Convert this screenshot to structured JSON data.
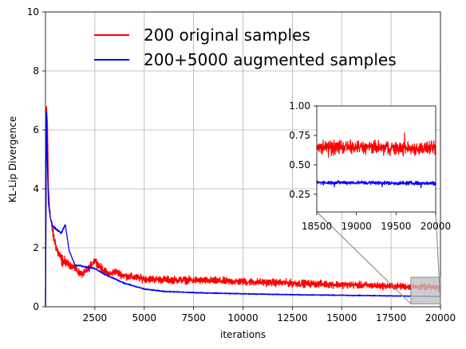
{
  "chart_data": [
    {
      "type": "line",
      "xlabel": "iterations",
      "ylabel": "KL-Lip Divergence",
      "xlim": [
        0,
        20000
      ],
      "ylim": [
        0,
        10
      ],
      "xticks": [
        2500,
        5000,
        7500,
        10000,
        12500,
        15000,
        17500,
        20000
      ],
      "xtick_labels": [
        "2500",
        "5000",
        "7500",
        "10000",
        "12500",
        "15000",
        "17500",
        "20000"
      ],
      "yticks": [
        0,
        2,
        4,
        6,
        8,
        10
      ],
      "ytick_labels": [
        "0",
        "2",
        "4",
        "6",
        "8",
        "10"
      ],
      "grid": true,
      "legend": "top-center",
      "series": [
        {
          "name": "200 original samples",
          "color": "#ff0000",
          "noise": 0.18,
          "x": [
            0,
            50,
            100,
            150,
            250,
            400,
            600,
            800,
            1000,
            1200,
            1500,
            1800,
            2000,
            2200,
            2400,
            2500,
            2700,
            3000,
            3300,
            3500,
            4000,
            5000,
            6000,
            7500,
            10000,
            12500,
            15000,
            17500,
            20000
          ],
          "y": [
            0.0,
            6.8,
            6.2,
            4.0,
            3.0,
            2.4,
            1.9,
            1.6,
            1.5,
            1.45,
            1.3,
            1.1,
            1.15,
            1.3,
            1.5,
            1.6,
            1.4,
            1.2,
            1.1,
            1.2,
            1.05,
            0.95,
            0.92,
            0.9,
            0.85,
            0.8,
            0.75,
            0.7,
            0.65
          ]
        },
        {
          "name": "200+5000 augmented samples",
          "color": "#0000ff",
          "noise": 0.035,
          "x": [
            0,
            50,
            100,
            150,
            250,
            400,
            600,
            800,
            1000,
            1200,
            1500,
            1800,
            2000,
            2500,
            3000,
            3500,
            4000,
            5000,
            6000,
            7500,
            10000,
            12500,
            15000,
            17500,
            20000
          ],
          "y": [
            0.0,
            6.6,
            4.8,
            3.5,
            3.0,
            2.7,
            2.6,
            2.5,
            2.8,
            1.9,
            1.4,
            1.4,
            1.35,
            1.3,
            1.1,
            0.95,
            0.8,
            0.6,
            0.52,
            0.48,
            0.44,
            0.41,
            0.39,
            0.37,
            0.35
          ]
        }
      ]
    },
    {
      "type": "line",
      "xlim": [
        18500,
        20000
      ],
      "ylim": [
        0.1,
        1.0
      ],
      "xticks": [
        18500,
        19000,
        19500,
        20000
      ],
      "xtick_labels": [
        "18500",
        "19000",
        "19500",
        "20000"
      ],
      "yticks": [
        0.25,
        0.5,
        0.75,
        1.0
      ],
      "ytick_labels": [
        "0.25",
        "0.50",
        "0.75",
        "1.00"
      ],
      "grid": false,
      "series": [
        {
          "color": "#ff0000",
          "noise": 0.07,
          "x": [
            18500,
            19000,
            19500,
            20000
          ],
          "y": [
            0.65,
            0.65,
            0.64,
            0.64
          ]
        },
        {
          "color": "#0000ff",
          "noise": 0.02,
          "x": [
            18500,
            19000,
            19500,
            20000
          ],
          "y": [
            0.35,
            0.35,
            0.345,
            0.345
          ]
        }
      ]
    }
  ]
}
